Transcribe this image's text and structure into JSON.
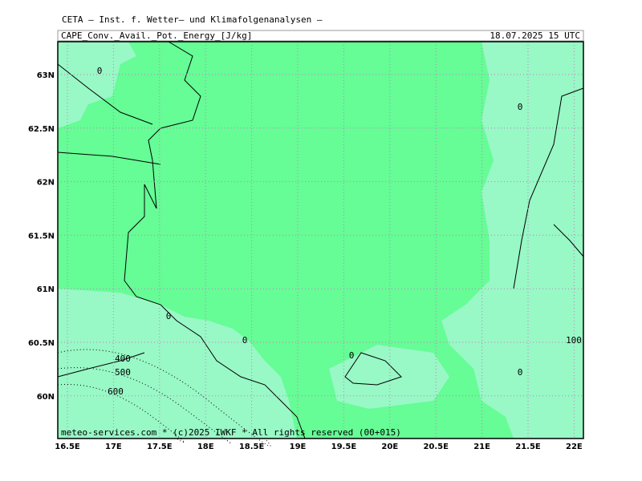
{
  "header": {
    "title": "CETA — Inst. f. Wetter— und Klimafolgenanalysen —",
    "field": "CAPE_Conv._Avail._Pot._Energy_[J/kg]",
    "valid": "18.07.2025  15 UTC"
  },
  "map": {
    "lon_labels": [
      "16.5E",
      "17E",
      "17.5E",
      "18E",
      "18.5E",
      "19E",
      "19.5E",
      "20E",
      "20.5E",
      "21E",
      "21.5E",
      "22E"
    ],
    "lat_labels": [
      "63N",
      "62.5N",
      "62N",
      "61.5N",
      "61N",
      "60.5N",
      "60N"
    ],
    "contour_labels": [
      "0",
      "0",
      "0",
      "0",
      "0",
      "0",
      "400",
      "500",
      "600",
      "100"
    ]
  },
  "footer": "meteo-services.com * (c)2025 IWKF * All rights reserved (00+015)"
}
